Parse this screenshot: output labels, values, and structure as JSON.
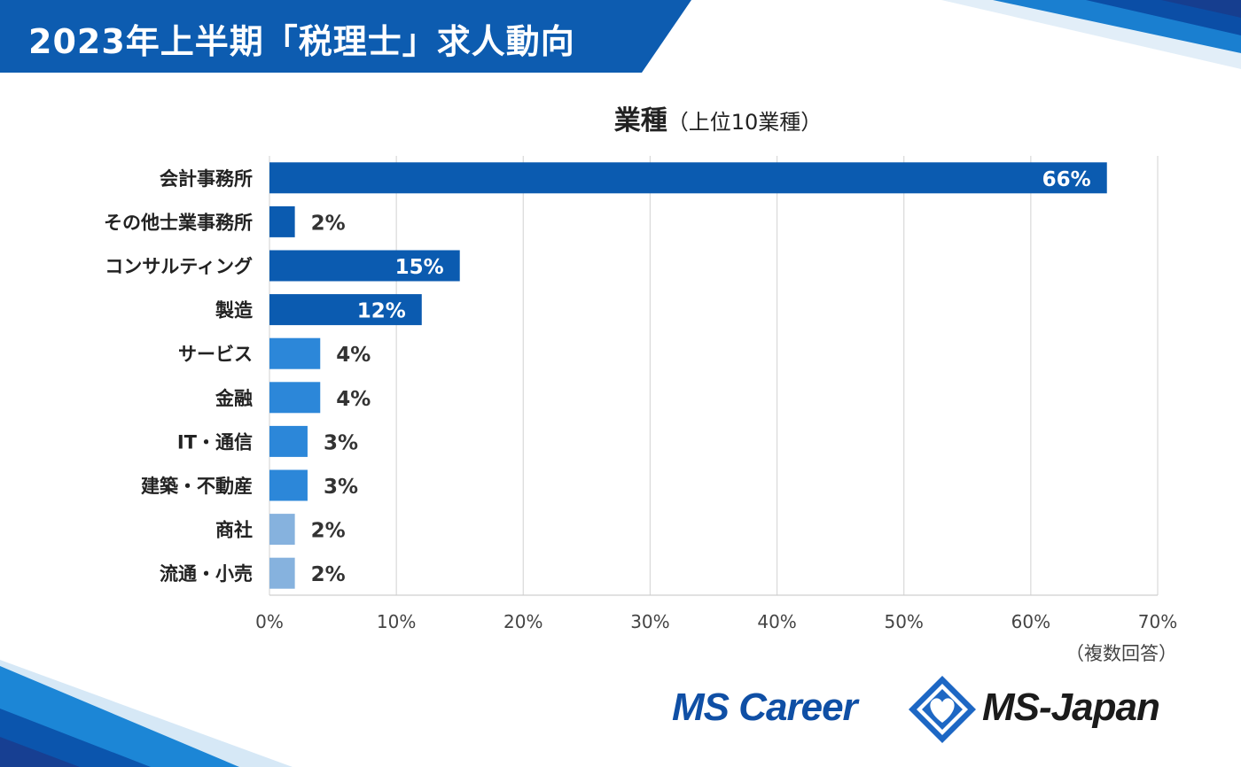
{
  "header": {
    "title": "2023年上半期「税理士」求人動向"
  },
  "colors": {
    "banner": "#0d5cb0",
    "bar_dark": "#0b5bb0",
    "bar_mid": "#2c87d9",
    "bar_light": "#86b2de",
    "grid": "#d9d9d9",
    "logo_blue": "#0f4fa5"
  },
  "chart_data": {
    "type": "bar",
    "orientation": "horizontal",
    "title": "業種",
    "subtitle": "（上位10業種）",
    "categories": [
      "会計事務所",
      "その他士業事務所",
      "コンサルティング",
      "製造",
      "サービス",
      "金融",
      "IT・通信",
      "建築・不動産",
      "商社",
      "流通・小売"
    ],
    "values": [
      66,
      2,
      15,
      12,
      4,
      4,
      3,
      3,
      2,
      2
    ],
    "value_labels": [
      "66%",
      "2%",
      "15%",
      "12%",
      "4%",
      "4%",
      "3%",
      "3%",
      "2%",
      "2%"
    ],
    "bar_shades": [
      "dark",
      "dark",
      "dark",
      "dark",
      "mid",
      "mid",
      "mid",
      "mid",
      "light",
      "light"
    ],
    "xlim": [
      0,
      70
    ],
    "xticks": [
      0,
      10,
      20,
      30,
      40,
      50,
      60,
      70
    ],
    "xtick_labels": [
      "0%",
      "10%",
      "20%",
      "30%",
      "40%",
      "50%",
      "60%",
      "70%"
    ],
    "grid": true,
    "note": "（複数回答）"
  },
  "logos": {
    "left": "MS Career",
    "right": "MS-Japan",
    "mark": "diamond-heart-icon"
  }
}
